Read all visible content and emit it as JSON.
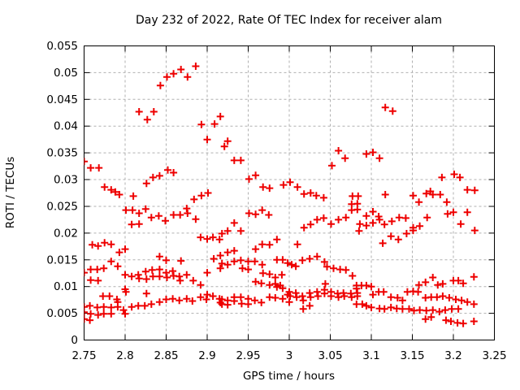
{
  "chart_data": {
    "type": "scatter",
    "title": "Day 232 of 2022, Rate Of TEC Index for receiver alam",
    "xlabel": "GPS time / hours",
    "ylabel": "ROTI / TECUs",
    "xlim": [
      2.75,
      3.25
    ],
    "ylim": [
      0,
      0.055
    ],
    "xticks": [
      2.75,
      2.8,
      2.85,
      2.9,
      2.95,
      3,
      3.05,
      3.1,
      3.15,
      3.2,
      3.25
    ],
    "xtick_labels": [
      "2.75",
      "2.8",
      "2.85",
      "2.9",
      "2.95",
      "3",
      "3.05",
      "3.1",
      "3.15",
      "3.2",
      "3.25"
    ],
    "yticks": [
      0,
      0.005,
      0.01,
      0.015,
      0.02,
      0.025,
      0.03,
      0.035,
      0.04,
      0.045,
      0.05,
      0.055
    ],
    "ytick_labels": [
      "0",
      "0.005",
      "0.01",
      "0.015",
      "0.02",
      "0.025",
      "0.03",
      "0.035",
      "0.04",
      "0.045",
      "0.05",
      "0.055"
    ],
    "grid": true,
    "legend": "none",
    "marker": "plus",
    "marker_color": "#ee0000",
    "grid_color": "#b0b0b0",
    "border_color": "#000000",
    "points": [
      [
        2.817,
        0.0427
      ],
      [
        2.835,
        0.0427
      ],
      [
        2.827,
        0.0412
      ],
      [
        2.843,
        0.0476
      ],
      [
        2.851,
        0.0492
      ],
      [
        2.859,
        0.0498
      ],
      [
        2.868,
        0.0506
      ],
      [
        2.876,
        0.0492
      ],
      [
        2.886,
        0.0512
      ],
      [
        2.893,
        0.0403
      ],
      [
        2.909,
        0.0404
      ],
      [
        2.916,
        0.0418
      ],
      [
        2.9,
        0.0375
      ],
      [
        2.925,
        0.0372
      ],
      [
        3.117,
        0.0435
      ],
      [
        3.126,
        0.0428
      ],
      [
        2.75,
        0.0334
      ],
      [
        2.758,
        0.0322
      ],
      [
        2.768,
        0.0322
      ],
      [
        2.826,
        0.0293
      ],
      [
        2.834,
        0.0304
      ],
      [
        2.842,
        0.0307
      ],
      [
        2.852,
        0.0318
      ],
      [
        2.859,
        0.0313
      ],
      [
        2.775,
        0.0286
      ],
      [
        2.783,
        0.0281
      ],
      [
        2.788,
        0.0277
      ],
      [
        2.793,
        0.0272
      ],
      [
        2.81,
        0.0269
      ],
      [
        2.801,
        0.0243
      ],
      [
        2.809,
        0.0243
      ],
      [
        2.817,
        0.0237
      ],
      [
        2.825,
        0.0245
      ],
      [
        2.832,
        0.0229
      ],
      [
        2.841,
        0.0232
      ],
      [
        2.849,
        0.0223
      ],
      [
        2.859,
        0.0234
      ],
      [
        2.867,
        0.0234
      ],
      [
        2.875,
        0.0246
      ],
      [
        2.876,
        0.0237
      ],
      [
        2.886,
        0.0226
      ],
      [
        2.884,
        0.0263
      ],
      [
        2.893,
        0.027
      ],
      [
        2.901,
        0.0275
      ],
      [
        2.808,
        0.0216
      ],
      [
        2.817,
        0.0217
      ],
      [
        2.921,
        0.0362
      ],
      [
        2.933,
        0.0336
      ],
      [
        2.941,
        0.0336
      ],
      [
        2.951,
        0.0301
      ],
      [
        2.959,
        0.0308
      ],
      [
        2.968,
        0.0286
      ],
      [
        2.976,
        0.0284
      ],
      [
        2.993,
        0.029
      ],
      [
        3.001,
        0.0295
      ],
      [
        3.01,
        0.0286
      ],
      [
        3.018,
        0.0273
      ],
      [
        3.026,
        0.0275
      ],
      [
        3.033,
        0.027
      ],
      [
        3.042,
        0.0266
      ],
      [
        3.06,
        0.0354
      ],
      [
        3.068,
        0.034
      ],
      [
        3.052,
        0.0326
      ],
      [
        3.077,
        0.0269
      ],
      [
        3.084,
        0.0269
      ],
      [
        3.076,
        0.0254
      ],
      [
        3.083,
        0.0255
      ],
      [
        3.076,
        0.0243
      ],
      [
        3.083,
        0.0244
      ],
      [
        2.951,
        0.0237
      ],
      [
        2.959,
        0.0235
      ],
      [
        2.967,
        0.0243
      ],
      [
        2.975,
        0.0234
      ],
      [
        2.933,
        0.0219
      ],
      [
        2.925,
        0.0204
      ],
      [
        2.941,
        0.0204
      ],
      [
        3.018,
        0.021
      ],
      [
        3.026,
        0.0216
      ],
      [
        3.034,
        0.0225
      ],
      [
        3.042,
        0.0228
      ],
      [
        3.051,
        0.0217
      ],
      [
        3.06,
        0.0225
      ],
      [
        3.069,
        0.0229
      ],
      [
        2.985,
        0.0188
      ],
      [
        3.085,
        0.0204
      ],
      [
        2.918,
        0.0199
      ],
      [
        3.094,
        0.0348
      ],
      [
        3.102,
        0.0351
      ],
      [
        3.11,
        0.034
      ],
      [
        3.186,
        0.0304
      ],
      [
        3.201,
        0.031
      ],
      [
        3.208,
        0.0304
      ],
      [
        3.217,
        0.0281
      ],
      [
        3.226,
        0.028
      ],
      [
        3.117,
        0.0272
      ],
      [
        3.151,
        0.027
      ],
      [
        3.158,
        0.0258
      ],
      [
        3.167,
        0.0274
      ],
      [
        3.172,
        0.0278
      ],
      [
        3.175,
        0.0272
      ],
      [
        3.184,
        0.0272
      ],
      [
        3.192,
        0.0258
      ],
      [
        3.193,
        0.0236
      ],
      [
        3.2,
        0.0239
      ],
      [
        3.217,
        0.0239
      ],
      [
        3.094,
        0.0232
      ],
      [
        3.102,
        0.024
      ],
      [
        3.109,
        0.0231
      ],
      [
        3.086,
        0.0217
      ],
      [
        3.094,
        0.0214
      ],
      [
        3.102,
        0.0219
      ],
      [
        3.11,
        0.0225
      ],
      [
        3.116,
        0.0216
      ],
      [
        3.125,
        0.0222
      ],
      [
        3.134,
        0.0229
      ],
      [
        3.142,
        0.0228
      ],
      [
        3.168,
        0.0229
      ],
      [
        3.209,
        0.0217
      ],
      [
        3.151,
        0.021
      ],
      [
        3.159,
        0.0213
      ],
      [
        3.124,
        0.0194
      ],
      [
        3.133,
        0.0188
      ],
      [
        3.143,
        0.0199
      ],
      [
        3.151,
        0.0205
      ],
      [
        3.226,
        0.0205
      ],
      [
        3.114,
        0.0181
      ],
      [
        2.76,
        0.0178
      ],
      [
        2.767,
        0.0176
      ],
      [
        2.775,
        0.0182
      ],
      [
        2.783,
        0.0179
      ],
      [
        2.793,
        0.0164
      ],
      [
        2.8,
        0.017
      ],
      [
        2.783,
        0.0147
      ],
      [
        2.791,
        0.0138
      ],
      [
        2.842,
        0.0156
      ],
      [
        2.85,
        0.0149
      ],
      [
        2.758,
        0.0132
      ],
      [
        2.766,
        0.0132
      ],
      [
        2.774,
        0.0134
      ],
      [
        2.75,
        0.0126
      ],
      [
        2.758,
        0.0112
      ],
      [
        2.767,
        0.0111
      ],
      [
        2.8,
        0.0122
      ],
      [
        2.808,
        0.0119
      ],
      [
        2.816,
        0.0122
      ],
      [
        2.817,
        0.0115
      ],
      [
        2.825,
        0.0128
      ],
      [
        2.826,
        0.0114
      ],
      [
        2.833,
        0.0131
      ],
      [
        2.834,
        0.0119
      ],
      [
        2.842,
        0.0132
      ],
      [
        2.842,
        0.0119
      ],
      [
        2.85,
        0.0126
      ],
      [
        2.851,
        0.0117
      ],
      [
        2.858,
        0.0129
      ],
      [
        2.859,
        0.012
      ],
      [
        2.866,
        0.0119
      ],
      [
        2.867,
        0.0111
      ],
      [
        2.875,
        0.0122
      ],
      [
        2.883,
        0.0111
      ],
      [
        2.892,
        0.0103
      ],
      [
        2.9,
        0.0126
      ],
      [
        2.908,
        0.0152
      ],
      [
        2.916,
        0.0134
      ],
      [
        2.916,
        0.0158
      ],
      [
        2.868,
        0.0148
      ],
      [
        2.8,
        0.0095
      ],
      [
        2.801,
        0.009
      ],
      [
        2.826,
        0.0087
      ],
      [
        2.773,
        0.0082
      ],
      [
        2.781,
        0.0082
      ],
      [
        2.79,
        0.0076
      ],
      [
        2.791,
        0.0071
      ],
      [
        2.75,
        0.0062
      ],
      [
        2.757,
        0.0064
      ],
      [
        2.766,
        0.0061
      ],
      [
        2.774,
        0.0062
      ],
      [
        2.783,
        0.0061
      ],
      [
        2.791,
        0.0062
      ],
      [
        2.798,
        0.0056
      ],
      [
        2.75,
        0.0052
      ],
      [
        2.758,
        0.0049
      ],
      [
        2.767,
        0.0047
      ],
      [
        2.774,
        0.0049
      ],
      [
        2.783,
        0.0049
      ],
      [
        2.75,
        0.0039
      ],
      [
        2.757,
        0.0037
      ],
      [
        2.8,
        0.0049
      ],
      [
        2.808,
        0.0062
      ],
      [
        2.816,
        0.0064
      ],
      [
        2.824,
        0.0064
      ],
      [
        2.832,
        0.0067
      ],
      [
        2.842,
        0.0071
      ],
      [
        2.85,
        0.0076
      ],
      [
        2.858,
        0.0077
      ],
      [
        2.866,
        0.0074
      ],
      [
        2.875,
        0.0077
      ],
      [
        2.882,
        0.0073
      ],
      [
        2.892,
        0.008
      ],
      [
        2.899,
        0.0076
      ],
      [
        2.907,
        0.0082
      ],
      [
        2.915,
        0.0077
      ],
      [
        2.916,
        0.007
      ],
      [
        2.9,
        0.0085
      ],
      [
        2.892,
        0.0192
      ],
      [
        2.9,
        0.0189
      ],
      [
        2.907,
        0.0192
      ],
      [
        2.915,
        0.0188
      ],
      [
        2.933,
        0.0167
      ],
      [
        2.925,
        0.0164
      ],
      [
        2.959,
        0.017
      ],
      [
        2.967,
        0.0179
      ],
      [
        2.976,
        0.0178
      ],
      [
        3.01,
        0.0179
      ],
      [
        2.918,
        0.0143
      ],
      [
        2.925,
        0.0141
      ],
      [
        2.933,
        0.0147
      ],
      [
        2.941,
        0.0149
      ],
      [
        2.95,
        0.0147
      ],
      [
        2.958,
        0.0147
      ],
      [
        2.985,
        0.015
      ],
      [
        2.992,
        0.015
      ],
      [
        2.967,
        0.0141
      ],
      [
        2.998,
        0.0144
      ],
      [
        3.003,
        0.0141
      ],
      [
        3.008,
        0.0138
      ],
      [
        3.016,
        0.0149
      ],
      [
        3.025,
        0.0152
      ],
      [
        3.034,
        0.0156
      ],
      [
        3.043,
        0.0146
      ],
      [
        2.943,
        0.0134
      ],
      [
        2.95,
        0.0132
      ],
      [
        3.046,
        0.0137
      ],
      [
        3.054,
        0.0134
      ],
      [
        3.062,
        0.0132
      ],
      [
        3.069,
        0.0131
      ],
      [
        3.077,
        0.012
      ],
      [
        2.968,
        0.0125
      ],
      [
        2.976,
        0.0123
      ],
      [
        2.983,
        0.0117
      ],
      [
        2.991,
        0.0122
      ],
      [
        2.959,
        0.0109
      ],
      [
        2.966,
        0.0106
      ],
      [
        2.976,
        0.0103
      ],
      [
        2.983,
        0.0105
      ],
      [
        2.989,
        0.0102
      ],
      [
        2.985,
        0.0099
      ],
      [
        2.992,
        0.0097
      ],
      [
        3.044,
        0.0105
      ],
      [
        2.918,
        0.0076
      ],
      [
        2.925,
        0.0074
      ],
      [
        2.933,
        0.0073
      ],
      [
        2.933,
        0.008
      ],
      [
        2.941,
        0.008
      ],
      [
        2.95,
        0.0077
      ],
      [
        2.958,
        0.0074
      ],
      [
        2.966,
        0.007
      ],
      [
        2.918,
        0.0067
      ],
      [
        2.925,
        0.0066
      ],
      [
        2.976,
        0.008
      ],
      [
        2.983,
        0.0079
      ],
      [
        2.992,
        0.0077
      ],
      [
        2.998,
        0.0085
      ],
      [
        3.0,
        0.009
      ],
      [
        3.001,
        0.0082
      ],
      [
        3.008,
        0.0088
      ],
      [
        3.009,
        0.008
      ],
      [
        3.016,
        0.0082
      ],
      [
        3.017,
        0.0074
      ],
      [
        3.025,
        0.0088
      ],
      [
        3.026,
        0.008
      ],
      [
        3.034,
        0.009
      ],
      [
        3.035,
        0.0082
      ],
      [
        3.043,
        0.0087
      ],
      [
        3.043,
        0.0094
      ],
      [
        3.051,
        0.009
      ],
      [
        3.051,
        0.0082
      ],
      [
        3.059,
        0.0087
      ],
      [
        3.06,
        0.008
      ],
      [
        3.066,
        0.0088
      ],
      [
        3.067,
        0.0082
      ],
      [
        3.075,
        0.0087
      ],
      [
        3.076,
        0.008
      ],
      [
        3.083,
        0.0088
      ],
      [
        3.083,
        0.0082
      ],
      [
        2.942,
        0.0068
      ],
      [
        2.95,
        0.0067
      ],
      [
        3.017,
        0.0058
      ],
      [
        3.025,
        0.0064
      ],
      [
        3.0,
        0.0071
      ],
      [
        3.082,
        0.0102
      ],
      [
        3.088,
        0.0102
      ],
      [
        3.094,
        0.0102
      ],
      [
        3.1,
        0.01
      ],
      [
        3.082,
        0.0096
      ],
      [
        3.102,
        0.0085
      ],
      [
        3.109,
        0.009
      ],
      [
        3.115,
        0.009
      ],
      [
        3.124,
        0.008
      ],
      [
        3.132,
        0.0079
      ],
      [
        3.138,
        0.0074
      ],
      [
        3.158,
        0.0103
      ],
      [
        3.166,
        0.0108
      ],
      [
        3.175,
        0.0117
      ],
      [
        3.181,
        0.0103
      ],
      [
        3.187,
        0.0105
      ],
      [
        3.2,
        0.0111
      ],
      [
        3.206,
        0.0111
      ],
      [
        3.212,
        0.0106
      ],
      [
        3.225,
        0.0118
      ],
      [
        3.144,
        0.009
      ],
      [
        3.151,
        0.0091
      ],
      [
        3.157,
        0.009
      ],
      [
        3.166,
        0.0079
      ],
      [
        3.173,
        0.008
      ],
      [
        3.18,
        0.008
      ],
      [
        3.187,
        0.0082
      ],
      [
        3.195,
        0.0079
      ],
      [
        3.203,
        0.0076
      ],
      [
        3.21,
        0.0074
      ],
      [
        3.217,
        0.0071
      ],
      [
        3.225,
        0.0067
      ],
      [
        3.082,
        0.0067
      ],
      [
        3.089,
        0.0067
      ],
      [
        3.094,
        0.0064
      ],
      [
        3.1,
        0.0061
      ],
      [
        3.11,
        0.0059
      ],
      [
        3.116,
        0.0058
      ],
      [
        3.124,
        0.0061
      ],
      [
        3.131,
        0.0059
      ],
      [
        3.138,
        0.0058
      ],
      [
        3.146,
        0.0058
      ],
      [
        3.152,
        0.0055
      ],
      [
        3.159,
        0.0056
      ],
      [
        3.167,
        0.0055
      ],
      [
        3.175,
        0.0056
      ],
      [
        3.183,
        0.0053
      ],
      [
        3.19,
        0.0056
      ],
      [
        3.198,
        0.0058
      ],
      [
        3.206,
        0.0058
      ],
      [
        3.166,
        0.0039
      ],
      [
        3.173,
        0.0043
      ],
      [
        3.191,
        0.0037
      ],
      [
        3.197,
        0.0035
      ],
      [
        3.205,
        0.0032
      ],
      [
        3.212,
        0.0031
      ],
      [
        3.225,
        0.0035
      ]
    ]
  }
}
